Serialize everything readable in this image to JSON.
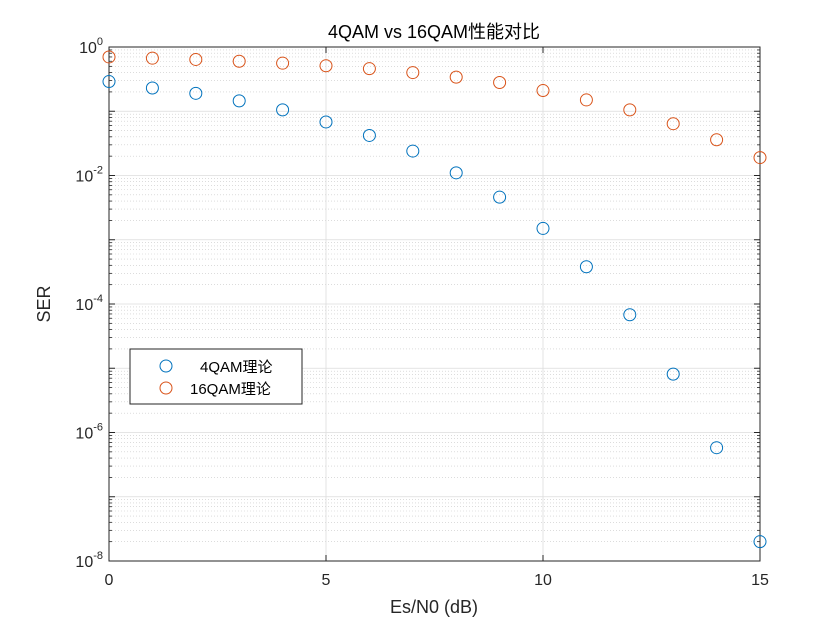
{
  "chart_data": {
    "type": "scatter",
    "title": "4QAM vs 16QAM性能对比",
    "xlabel": "Es/N0 (dB)",
    "ylabel": "SER",
    "xlim": [
      0,
      15
    ],
    "ylim": [
      1e-08,
      1
    ],
    "yscale": "log",
    "grid": true,
    "legend_position": "left",
    "x_ticks": [
      "0",
      "5",
      "10",
      "15"
    ],
    "y_ticks": [
      {
        "base": "10",
        "exp": "0"
      },
      {
        "base": "10",
        "exp": "-2"
      },
      {
        "base": "10",
        "exp": "-4"
      },
      {
        "base": "10",
        "exp": "-6"
      },
      {
        "base": "10",
        "exp": "-8"
      }
    ],
    "x": [
      0,
      1,
      2,
      3,
      4,
      5,
      6,
      7,
      8,
      9,
      10,
      11,
      12,
      13,
      14,
      15
    ],
    "series": [
      {
        "name": "4QAM理论",
        "color": "#0072BD",
        "values": [
          0.29,
          0.23,
          0.19,
          0.145,
          0.105,
          0.068,
          0.042,
          0.024,
          0.011,
          0.0046,
          0.0015,
          0.00038,
          6.8e-05,
          8.1e-06,
          5.8e-07,
          2e-08
        ]
      },
      {
        "name": "16QAM理论",
        "color": "#D95319",
        "values": [
          0.7,
          0.67,
          0.64,
          0.6,
          0.56,
          0.51,
          0.46,
          0.4,
          0.34,
          0.28,
          0.21,
          0.15,
          0.105,
          0.064,
          0.036,
          0.019
        ]
      }
    ]
  }
}
